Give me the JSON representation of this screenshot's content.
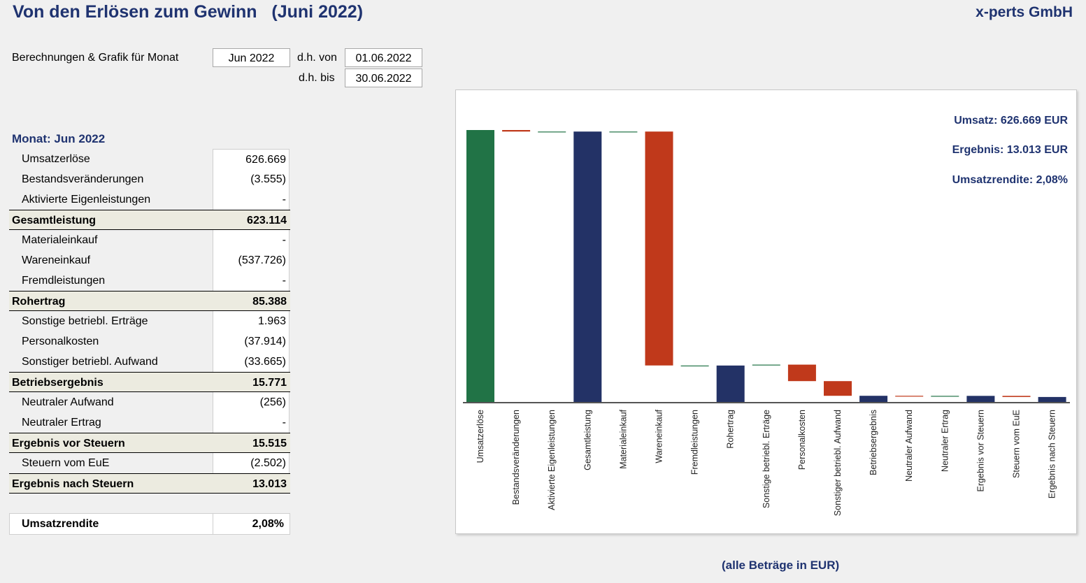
{
  "header": {
    "title": "Von den Erlösen zum Gewinn   (Juni 2022)",
    "company": "x-perts GmbH"
  },
  "period": {
    "label": "Berechnungen & Grafik für Monat",
    "month": "Jun 2022",
    "from_label": "d.h. von",
    "from": "01.06.2022",
    "to_label": "d.h. bis",
    "to": "30.06.2022"
  },
  "table": {
    "heading": "Monat: Jun 2022",
    "rows": [
      {
        "label": "Umsatzerlöse",
        "value": "626.669",
        "total": false
      },
      {
        "label": "Bestandsveränderungen",
        "value": "(3.555)",
        "total": false
      },
      {
        "label": "Aktivierte Eigenleistungen",
        "value": "-",
        "total": false
      },
      {
        "label": "Gesamtleistung",
        "value": "623.114",
        "total": true
      },
      {
        "label": "Materialeinkauf",
        "value": "-",
        "total": false
      },
      {
        "label": "Wareneinkauf",
        "value": "(537.726)",
        "total": false
      },
      {
        "label": "Fremdleistungen",
        "value": "-",
        "total": false
      },
      {
        "label": "Rohertrag",
        "value": "85.388",
        "total": true
      },
      {
        "label": "Sonstige betriebl. Erträge",
        "value": "1.963",
        "total": false
      },
      {
        "label": "Personalkosten",
        "value": "(37.914)",
        "total": false
      },
      {
        "label": "Sonstiger betriebl. Aufwand",
        "value": "(33.665)",
        "total": false
      },
      {
        "label": "Betriebsergebnis",
        "value": "15.771",
        "total": true
      },
      {
        "label": "Neutraler Aufwand",
        "value": "(256)",
        "total": false
      },
      {
        "label": "Neutraler Ertrag",
        "value": "-",
        "total": false
      },
      {
        "label": "Ergebnis vor Steuern",
        "value": "15.515",
        "total": true
      },
      {
        "label": "Steuern vom EuE",
        "value": "(2.502)",
        "total": false
      },
      {
        "label": "Ergebnis nach Steuern",
        "value": "13.013",
        "total": true
      }
    ],
    "rendite_label": "Umsatzrendite",
    "rendite_value": "2,08%"
  },
  "kpis": {
    "umsatz": "Umsatz: 626.669 EUR",
    "ergebnis": "Ergebnis: 13.013 EUR",
    "rendite": "Umsatzrendite: 2,08%"
  },
  "footer": "(alle Beträge in EUR)",
  "colors": {
    "start": "#217346",
    "total": "#233266",
    "increase": "#217346",
    "decrease": "#c0391b",
    "accent_text": "#1f3370"
  },
  "chart_data": {
    "type": "waterfall",
    "categories": [
      "Umsatzerlöse",
      "Bestandsveränderungen",
      "Aktivierte Eigenleistungen",
      "Gesamtleistung",
      "Materialeinkauf",
      "Wareneinkauf",
      "Fremdleistungen",
      "Rohertrag",
      "Sonstige betriebl. Erträge",
      "Personalkosten",
      "Sonstiger betriebl. Aufwand",
      "Betriebsergebnis",
      "Neutraler Aufwand",
      "Neutraler Ertrag",
      "Ergebnis vor Steuern",
      "Steuern vom EuE",
      "Ergebnis nach Steuern"
    ],
    "values": [
      626669,
      -3555,
      0,
      623114,
      0,
      -537726,
      0,
      85388,
      1963,
      -37914,
      -33665,
      15771,
      -256,
      0,
      15515,
      -2502,
      13013
    ],
    "kinds": [
      "start",
      "delta",
      "delta",
      "total",
      "delta",
      "delta",
      "delta",
      "total",
      "delta",
      "delta",
      "delta",
      "total",
      "delta",
      "delta",
      "total",
      "delta",
      "total"
    ],
    "ylim": [
      0,
      626669
    ]
  }
}
